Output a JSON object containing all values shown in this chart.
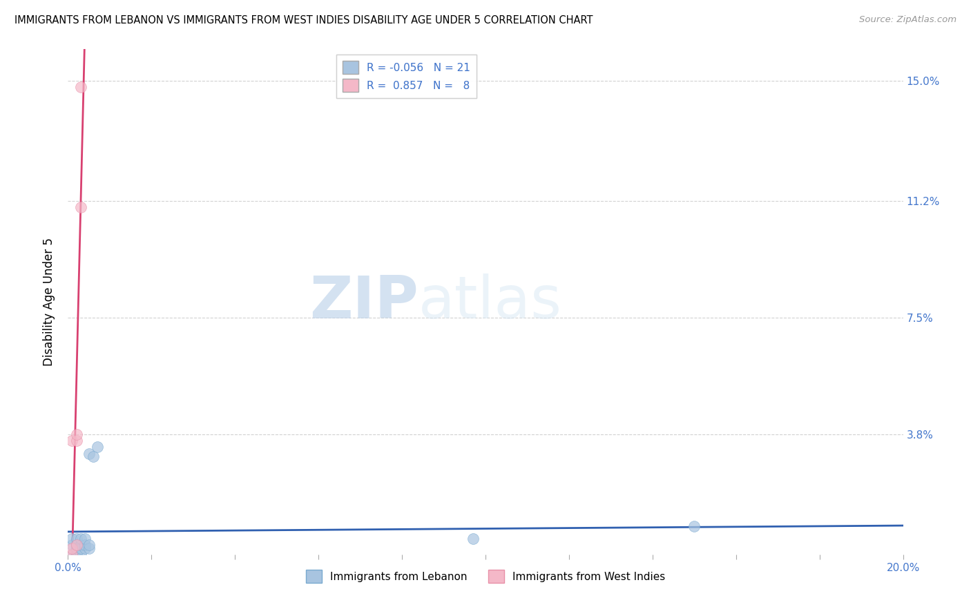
{
  "title": "IMMIGRANTS FROM LEBANON VS IMMIGRANTS FROM WEST INDIES DISABILITY AGE UNDER 5 CORRELATION CHART",
  "source": "Source: ZipAtlas.com",
  "ylabel": "Disability Age Under 5",
  "xlabel": "",
  "xlim": [
    0.0,
    0.2
  ],
  "ylim": [
    0.0,
    0.16
  ],
  "ytick_positions": [
    0.038,
    0.075,
    0.112,
    0.15
  ],
  "yticklabels": [
    "3.8%",
    "7.5%",
    "11.2%",
    "15.0%"
  ],
  "lebanon_color": "#a8c4e0",
  "lebanon_edge_color": "#7aaad0",
  "west_indies_color": "#f4b8c8",
  "west_indies_edge_color": "#e890a8",
  "lebanon_line_color": "#3060b0",
  "west_indies_line_color": "#d84070",
  "lebanon_r": -0.056,
  "lebanon_n": 21,
  "west_indies_r": 0.857,
  "west_indies_n": 8,
  "watermark_zip": "ZIP",
  "watermark_atlas": "atlas",
  "legend_bottom_labels": [
    "Immigrants from Lebanon",
    "Immigrants from West Indies"
  ],
  "lebanon_x": [
    0.001,
    0.001,
    0.001,
    0.002,
    0.002,
    0.002,
    0.002,
    0.003,
    0.003,
    0.003,
    0.003,
    0.004,
    0.004,
    0.004,
    0.005,
    0.005,
    0.005,
    0.006,
    0.007,
    0.097,
    0.15
  ],
  "lebanon_y": [
    0.0,
    0.003,
    0.005,
    0.0,
    0.002,
    0.003,
    0.005,
    0.0,
    0.002,
    0.003,
    0.005,
    0.002,
    0.003,
    0.005,
    0.002,
    0.003,
    0.032,
    0.031,
    0.034,
    0.005,
    0.009
  ],
  "west_indies_x": [
    0.001,
    0.001,
    0.001,
    0.002,
    0.002,
    0.002,
    0.003,
    0.003
  ],
  "west_indies_y": [
    0.0,
    0.002,
    0.036,
    0.003,
    0.036,
    0.038,
    0.11,
    0.148
  ],
  "wi_line_x_start": 0.0,
  "wi_line_x_end": 0.0045,
  "leb_line_x_start": 0.0,
  "leb_line_x_end": 0.2
}
